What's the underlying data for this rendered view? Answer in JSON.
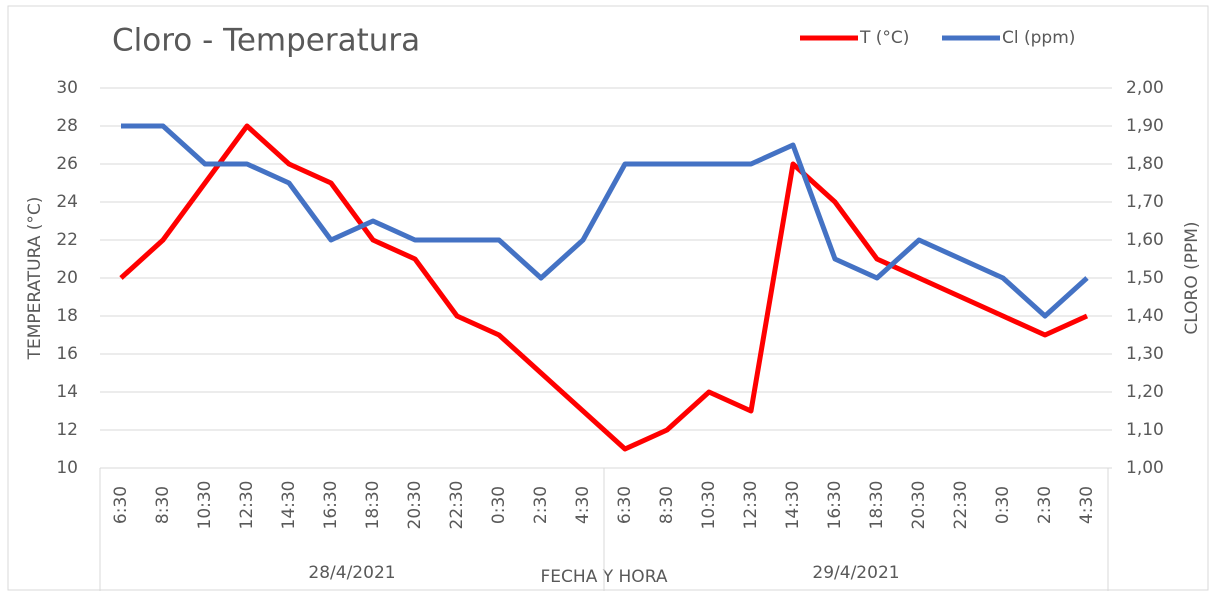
{
  "chart_data": {
    "type": "line",
    "title": "Cloro - Temperatura",
    "x_label": "FECHA Y HORA",
    "y_label": "TEMPERATURA  (°C)",
    "y2_label": "CLORO (PPM)",
    "categories": [
      "6:30",
      "8:30",
      "10:30",
      "12:30",
      "14:30",
      "16:30",
      "18:30",
      "20:30",
      "22:30",
      "0:30",
      "2:30",
      "4:30",
      "6:30",
      "8:30",
      "10:30",
      "12:30",
      "14:30",
      "16:30",
      "18:30",
      "20:30",
      "22:30",
      "0:30",
      "2:30",
      "4:30"
    ],
    "groups": [
      "28/4/2021",
      "29/4/2021"
    ],
    "series": [
      {
        "name": "T  (°C)",
        "color": "#ff0000",
        "values": [
          20,
          22,
          25,
          28,
          26,
          25,
          22,
          21,
          18,
          17,
          15,
          13,
          11,
          12,
          14,
          13,
          26,
          24,
          21,
          20,
          19,
          18,
          17,
          18
        ]
      },
      {
        "name": "Cl (ppm)",
        "color": "#4472c4",
        "axis": "y2",
        "values": [
          1.9,
          1.9,
          1.8,
          1.8,
          1.75,
          1.6,
          1.65,
          1.6,
          1.6,
          1.6,
          1.5,
          1.6,
          1.8,
          1.8,
          1.8,
          1.8,
          1.85,
          1.55,
          1.5,
          1.6,
          1.55,
          1.5,
          1.4,
          1.5
        ]
      }
    ],
    "ylim": [
      10,
      30
    ],
    "yticks": [
      10,
      12,
      14,
      16,
      18,
      20,
      22,
      24,
      26,
      28,
      30
    ],
    "y2lim": [
      1,
      2
    ],
    "y2ticks": [
      {
        "value": 1,
        "label": "1,00"
      },
      {
        "value": 1.1,
        "label": "1,10"
      },
      {
        "value": 1.2,
        "label": "1,20"
      },
      {
        "value": 1.3,
        "label": "1,30"
      },
      {
        "value": 1.4,
        "label": "1,40"
      },
      {
        "value": 1.5,
        "label": "1,50"
      },
      {
        "value": 1.6,
        "label": "1,60"
      },
      {
        "value": 1.7,
        "label": "1,70"
      },
      {
        "value": 1.8,
        "label": "1,80"
      },
      {
        "value": 1.9,
        "label": "1,90"
      },
      {
        "value": 2,
        "label": "2,00"
      }
    ],
    "grid": true,
    "legend": "top-right"
  }
}
